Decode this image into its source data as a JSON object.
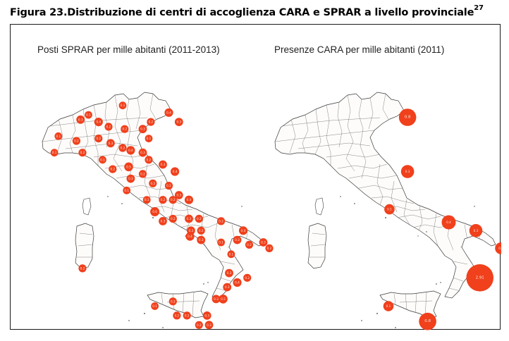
{
  "figure": {
    "title_prefix": "Figura 23.",
    "title": "Distribuzione di centri di accoglienza CARA e SPRAR a livello provinciale",
    "footnote_ref": "27"
  },
  "colors": {
    "bubble": "#f0401c",
    "map_fill": "#fdfcfa",
    "border": "#3a3a3a"
  },
  "chart_data": [
    {
      "type": "bubble-map",
      "title": "Posti SPRAR per mille abitanti (2011-2013)",
      "points": [
        {
          "label": "0.1",
          "lon": 7.7,
          "lat": 45.1
        },
        {
          "label": "0.2",
          "lon": 8.6,
          "lat": 44.9
        },
        {
          "label": "0.1",
          "lon": 7.5,
          "lat": 44.4
        },
        {
          "label": "0.2",
          "lon": 8.9,
          "lat": 44.4
        },
        {
          "label": "0.3",
          "lon": 8.8,
          "lat": 45.8
        },
        {
          "label": "0.1",
          "lon": 9.2,
          "lat": 46.0
        },
        {
          "label": "0.4",
          "lon": 9.7,
          "lat": 45.7
        },
        {
          "label": "0.2",
          "lon": 10.2,
          "lat": 45.5
        },
        {
          "label": "0.1",
          "lon": 10.9,
          "lat": 46.4
        },
        {
          "label": "0.2",
          "lon": 11.0,
          "lat": 45.4
        },
        {
          "label": "0.3",
          "lon": 11.9,
          "lat": 45.4
        },
        {
          "label": "0.2",
          "lon": 12.3,
          "lat": 45.7
        },
        {
          "label": "0.4",
          "lon": 13.2,
          "lat": 46.1
        },
        {
          "label": "0.3",
          "lon": 13.7,
          "lat": 45.7
        },
        {
          "label": "0.1",
          "lon": 12.2,
          "lat": 45.0
        },
        {
          "label": "0.2",
          "lon": 9.7,
          "lat": 45.0
        },
        {
          "label": "0.3",
          "lon": 10.3,
          "lat": 44.8
        },
        {
          "label": "0.2",
          "lon": 10.9,
          "lat": 44.6
        },
        {
          "label": "0.4",
          "lon": 11.3,
          "lat": 44.5
        },
        {
          "label": "0.3",
          "lon": 11.9,
          "lat": 44.4
        },
        {
          "label": "0.2",
          "lon": 12.2,
          "lat": 44.1
        },
        {
          "label": "0.1",
          "lon": 9.9,
          "lat": 44.1
        },
        {
          "label": "0.2",
          "lon": 10.4,
          "lat": 43.7
        },
        {
          "label": "0.5",
          "lon": 11.2,
          "lat": 43.8
        },
        {
          "label": "0.3",
          "lon": 11.3,
          "lat": 43.3
        },
        {
          "label": "0.2",
          "lon": 11.9,
          "lat": 43.5
        },
        {
          "label": "0.1",
          "lon": 11.1,
          "lat": 42.8
        },
        {
          "label": "0.2",
          "lon": 12.4,
          "lat": 43.1
        },
        {
          "label": "0.3",
          "lon": 12.9,
          "lat": 43.9
        },
        {
          "label": "0.4",
          "lon": 13.5,
          "lat": 43.6
        },
        {
          "label": "0.2",
          "lon": 13.2,
          "lat": 43.0
        },
        {
          "label": "0.3",
          "lon": 13.7,
          "lat": 42.6
        },
        {
          "label": "0.4",
          "lon": 14.2,
          "lat": 42.4
        },
        {
          "label": "0.2",
          "lon": 13.4,
          "lat": 42.4
        },
        {
          "label": "0.1",
          "lon": 12.1,
          "lat": 42.4
        },
        {
          "label": "0.2",
          "lon": 12.9,
          "lat": 42.4
        },
        {
          "label": "0.6",
          "lon": 12.5,
          "lat": 41.9
        },
        {
          "label": "0.3",
          "lon": 12.9,
          "lat": 41.5
        },
        {
          "label": "0.2",
          "lon": 13.4,
          "lat": 41.6
        },
        {
          "label": "0.3",
          "lon": 14.2,
          "lat": 41.6
        },
        {
          "label": "0.2",
          "lon": 14.7,
          "lat": 41.6
        },
        {
          "label": "0.3",
          "lon": 14.3,
          "lat": 41.1
        },
        {
          "label": "0.4",
          "lon": 14.25,
          "lat": 40.85
        },
        {
          "label": "0.2",
          "lon": 14.8,
          "lat": 41.1
        },
        {
          "label": "0.3",
          "lon": 14.8,
          "lat": 40.7
        },
        {
          "label": "0.2",
          "lon": 15.8,
          "lat": 41.5
        },
        {
          "label": "0.1",
          "lon": 15.8,
          "lat": 40.6
        },
        {
          "label": "0.3",
          "lon": 16.6,
          "lat": 40.7
        },
        {
          "label": "0.4",
          "lon": 16.9,
          "lat": 41.1
        },
        {
          "label": "0.2",
          "lon": 17.2,
          "lat": 40.5
        },
        {
          "label": "0.3",
          "lon": 17.9,
          "lat": 40.6
        },
        {
          "label": "0.2",
          "lon": 18.2,
          "lat": 40.35
        },
        {
          "label": "0.1",
          "lon": 16.3,
          "lat": 40.1
        },
        {
          "label": "0.3",
          "lon": 16.2,
          "lat": 39.3
        },
        {
          "label": "0.2",
          "lon": 17.1,
          "lat": 39.1
        },
        {
          "label": "0.4",
          "lon": 16.6,
          "lat": 38.9
        },
        {
          "label": "0.3",
          "lon": 16.1,
          "lat": 38.7
        },
        {
          "label": "0.5",
          "lon": 15.9,
          "lat": 38.2
        },
        {
          "label": "0.2",
          "lon": 13.4,
          "lat": 38.1
        },
        {
          "label": "0.1",
          "lon": 12.5,
          "lat": 37.9
        },
        {
          "label": "0.2",
          "lon": 13.6,
          "lat": 37.5
        },
        {
          "label": "0.2",
          "lon": 14.1,
          "lat": 37.5
        },
        {
          "label": "0.3",
          "lon": 15.55,
          "lat": 38.2
        },
        {
          "label": "0.3",
          "lon": 15.1,
          "lat": 37.5
        },
        {
          "label": "0.2",
          "lon": 14.7,
          "lat": 37.1
        },
        {
          "label": "0.3",
          "lon": 15.2,
          "lat": 37.1
        },
        {
          "label": "0.2",
          "lon": 8.9,
          "lat": 39.5
        }
      ]
    },
    {
      "type": "bubble-map",
      "title": "Presenze CARA per mille abitanti (2011)",
      "points": [
        {
          "label": "0.8",
          "lon": 13.5,
          "lat": 45.9,
          "r": 0.8
        },
        {
          "label": "0.3",
          "lon": 13.5,
          "lat": 43.6,
          "r": 0.3
        },
        {
          "label": "0.1",
          "lon": 12.6,
          "lat": 42.0,
          "r": 0.1
        },
        {
          "label": "0.4",
          "lon": 15.55,
          "lat": 41.45,
          "r": 0.4
        },
        {
          "label": "0.3",
          "lon": 16.9,
          "lat": 41.1,
          "r": 0.3
        },
        {
          "label": "0.2",
          "lon": 18.15,
          "lat": 40.35,
          "r": 0.2
        },
        {
          "label": "2.91",
          "lon": 17.1,
          "lat": 39.1,
          "r": 2.91
        },
        {
          "label": "0.1",
          "lon": 12.55,
          "lat": 37.9,
          "r": 0.1
        },
        {
          "label": "0.8",
          "lon": 14.5,
          "lat": 37.25,
          "r": 0.8
        }
      ]
    }
  ]
}
